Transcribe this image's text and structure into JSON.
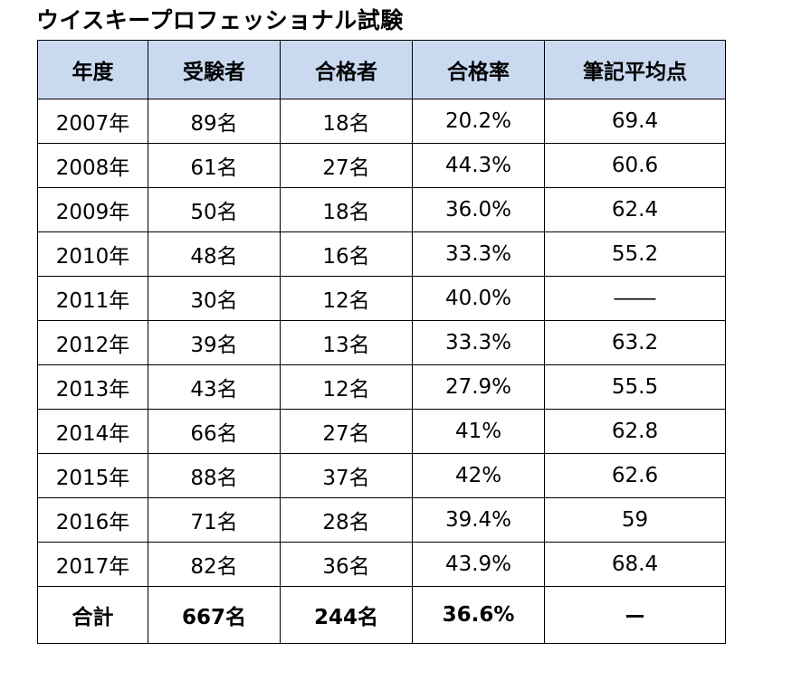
{
  "title": "ウイスキープロフェッショナル試験",
  "table": {
    "headers": [
      "年度",
      "受験者",
      "合格者",
      "合格率",
      "筆記平均点"
    ],
    "rows": [
      [
        "2007年",
        "89名",
        "18名",
        "20.2%",
        "69.4"
      ],
      [
        "2008年",
        "61名",
        "27名",
        "44.3%",
        "60.6"
      ],
      [
        "2009年",
        "50名",
        "18名",
        "36.0%",
        "62.4"
      ],
      [
        "2010年",
        "48名",
        "16名",
        "33.3%",
        "55.2"
      ],
      [
        "2011年",
        "30名",
        "12名",
        "40.0%",
        "――"
      ],
      [
        "2012年",
        "39名",
        "13名",
        "33.3%",
        "63.2"
      ],
      [
        "2013年",
        "43名",
        "12名",
        "27.9%",
        "55.5"
      ],
      [
        "2014年",
        "66名",
        "27名",
        "41%",
        "62.8"
      ],
      [
        "2015年",
        "88名",
        "37名",
        "42%",
        "62.6"
      ],
      [
        "2016年",
        "71名",
        "28名",
        "39.4%",
        "59"
      ],
      [
        "2017年",
        "82名",
        "36名",
        "43.9%",
        "68.4"
      ]
    ],
    "total": [
      "合計",
      "667名",
      "244名",
      "36.6%",
      "ー"
    ]
  },
  "colors": {
    "header_background": "#c9daf0",
    "border": "#000000",
    "text": "#000000"
  }
}
